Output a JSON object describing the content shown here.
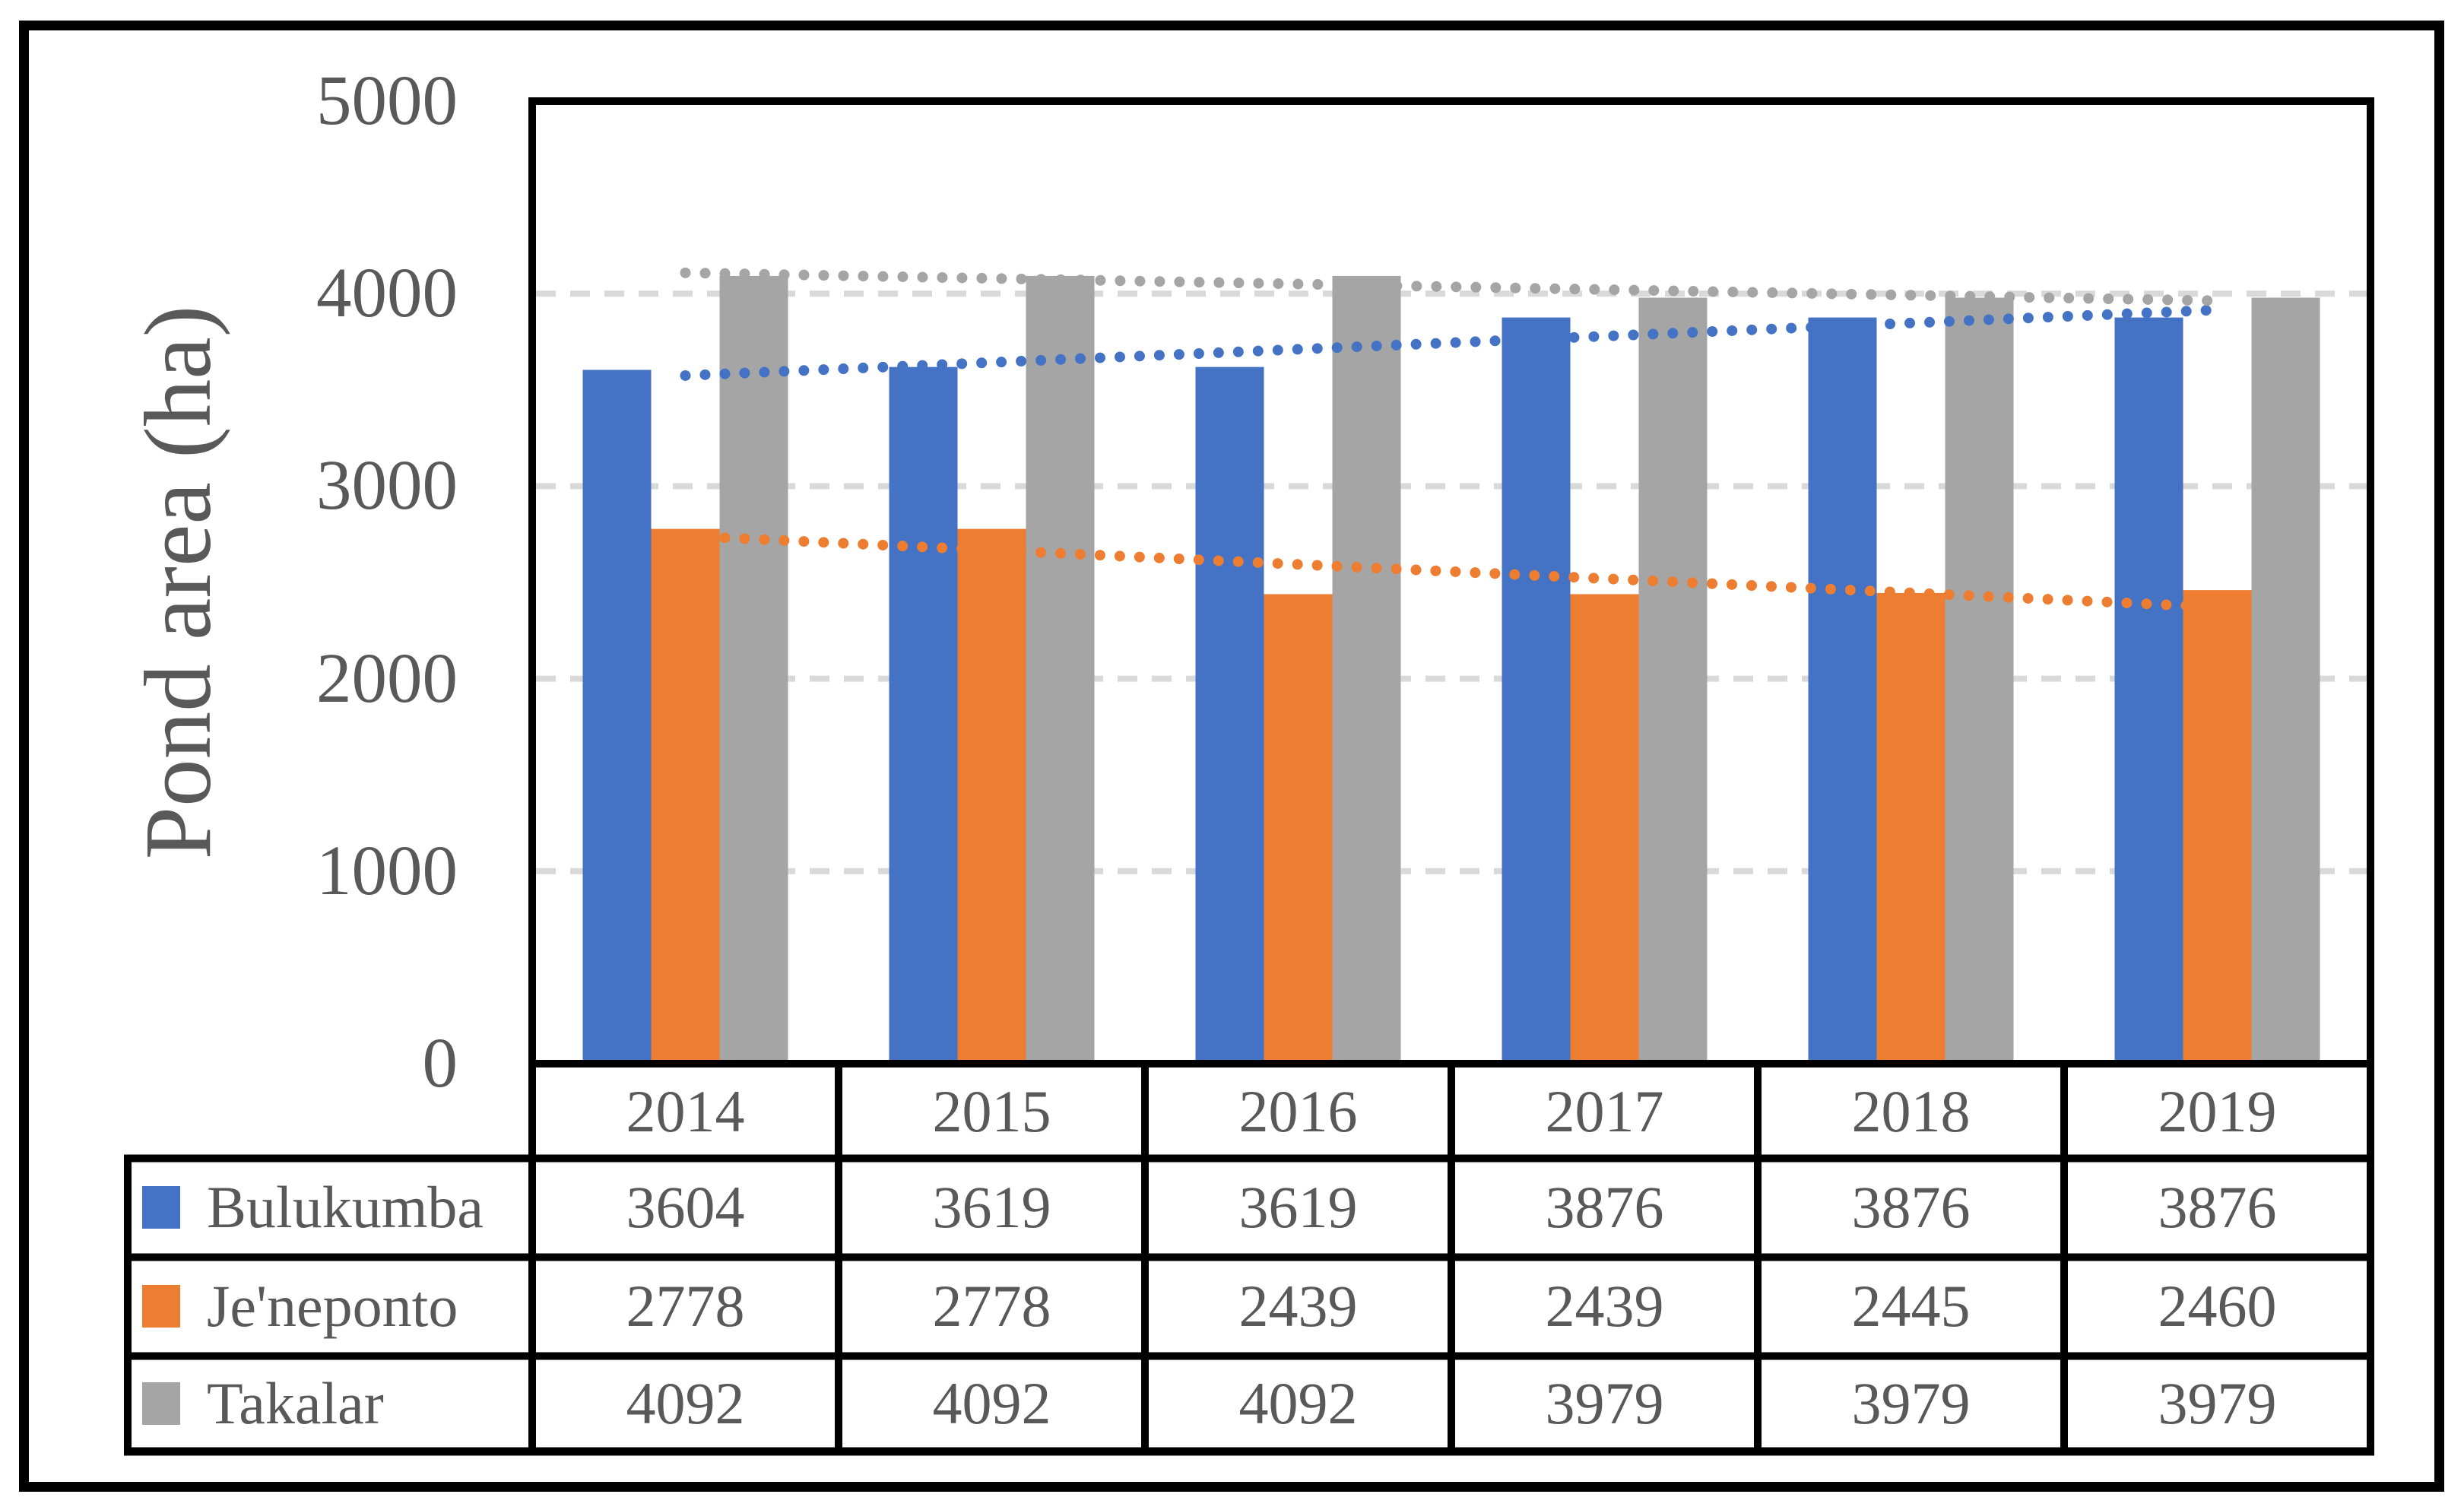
{
  "chart_data": {
    "type": "bar",
    "title": "",
    "xlabel": "",
    "ylabel": "Pond area (ha)",
    "ylim": [
      0,
      5000
    ],
    "ytick_interval": 1000,
    "ytick_labels": [
      "5000",
      "4000",
      "3000",
      "2000",
      "1000",
      "0"
    ],
    "grid": "horizontal dashed gridlines at every 1000",
    "legend_position": "keys in left column of attached data table",
    "data_table_shown": true,
    "categories": [
      "2014",
      "2015",
      "2016",
      "2017",
      "2018",
      "2019"
    ],
    "series": [
      {
        "name": "Bulukumba",
        "color": "#4472C4",
        "values": [
          3604,
          3619,
          3619,
          3876,
          3876,
          3876
        ],
        "trendline": "linear dotted"
      },
      {
        "name": "Je'neponto",
        "color": "#ED7D31",
        "values": [
          2778,
          2778,
          2439,
          2439,
          2445,
          2460
        ],
        "trendline": "linear dotted"
      },
      {
        "name": "Takalar",
        "color": "#A5A5A5",
        "values": [
          4092,
          4092,
          4092,
          3979,
          3979,
          3979
        ],
        "trendline": "linear dotted"
      }
    ]
  },
  "styles": {
    "text_color": "#595959",
    "gridline_color": "#D9D9D9",
    "border_color": "#000000",
    "background_color": "#FFFFFF"
  }
}
